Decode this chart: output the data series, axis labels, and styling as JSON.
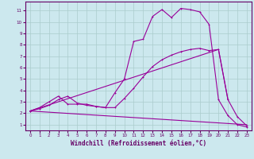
{
  "xlabel": "Windchill (Refroidissement éolien,°C)",
  "background_color": "#cce8ee",
  "grid_color": "#aacccc",
  "line_color": "#990099",
  "xlim": [
    -0.5,
    23.5
  ],
  "ylim": [
    0.5,
    11.8
  ],
  "yticks": [
    1,
    2,
    3,
    4,
    5,
    6,
    7,
    8,
    9,
    10,
    11
  ],
  "xticks": [
    0,
    1,
    2,
    3,
    4,
    5,
    6,
    7,
    8,
    9,
    10,
    11,
    12,
    13,
    14,
    15,
    16,
    17,
    18,
    19,
    20,
    21,
    22,
    23
  ],
  "series1_x": [
    0,
    1,
    2,
    3,
    4,
    5,
    6,
    7,
    8,
    9,
    10,
    11,
    12,
    13,
    14,
    15,
    16,
    17,
    18,
    19,
    20,
    21,
    22,
    23
  ],
  "series1_y": [
    2.2,
    2.5,
    3.0,
    3.5,
    2.8,
    2.8,
    2.8,
    2.6,
    2.5,
    3.8,
    5.0,
    8.3,
    8.5,
    10.5,
    11.1,
    10.4,
    11.2,
    11.1,
    10.9,
    9.8,
    3.2,
    1.8,
    1.0,
    0.8
  ],
  "series2_x": [
    0,
    1,
    2,
    3,
    4,
    5,
    6,
    7,
    8,
    9,
    10,
    11,
    12,
    13,
    14,
    15,
    16,
    17,
    18,
    19,
    20,
    21,
    22,
    23
  ],
  "series2_y": [
    2.2,
    2.4,
    2.7,
    3.2,
    3.5,
    2.9,
    2.7,
    2.6,
    2.5,
    2.5,
    3.3,
    4.2,
    5.2,
    6.1,
    6.7,
    7.1,
    7.4,
    7.6,
    7.7,
    7.5,
    7.6,
    3.2,
    1.7,
    0.9
  ],
  "series3_x": [
    0,
    23
  ],
  "series3_y": [
    2.2,
    1.0
  ],
  "series4_x": [
    0,
    20,
    21
  ],
  "series4_y": [
    2.2,
    7.6,
    3.2
  ]
}
